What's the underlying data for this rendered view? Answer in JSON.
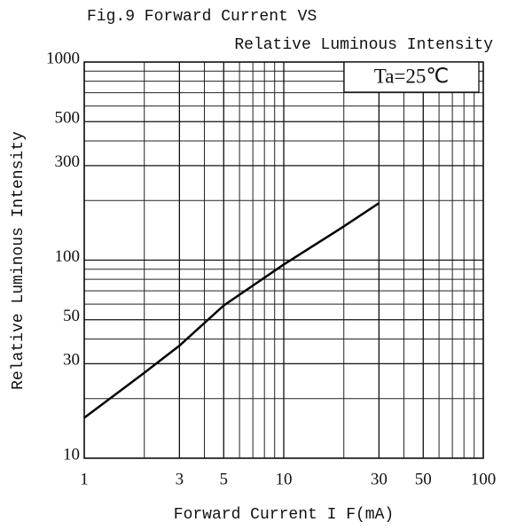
{
  "chart_data": {
    "type": "line",
    "title": "Fig.9 Forward Current VS",
    "subtitle": "Relative Luminous Intensity",
    "xlabel": "Forward Current I F(mA)",
    "ylabel": "Relative Luminous Intensity",
    "annotation": "Ta=25℃",
    "x": [
      1,
      2,
      3,
      5,
      10,
      20,
      30
    ],
    "series": [
      {
        "color": "#000000",
        "values": [
          16,
          27,
          37,
          59,
          95,
          148,
          194
        ]
      }
    ],
    "xlim": [
      1,
      100
    ],
    "ylim": [
      10,
      1000
    ],
    "xticks": [
      1,
      3,
      5,
      10,
      30,
      50,
      100
    ],
    "yticks": [
      10,
      30,
      50,
      100,
      300,
      500,
      1000
    ],
    "xminor": [
      2,
      4,
      6,
      7,
      8,
      9,
      20,
      40,
      60,
      70,
      80,
      90
    ],
    "yminor": [
      20,
      40,
      60,
      70,
      80,
      90,
      200,
      400,
      600,
      700,
      800,
      900
    ],
    "xscale": "log",
    "yscale": "log",
    "grid": true
  }
}
